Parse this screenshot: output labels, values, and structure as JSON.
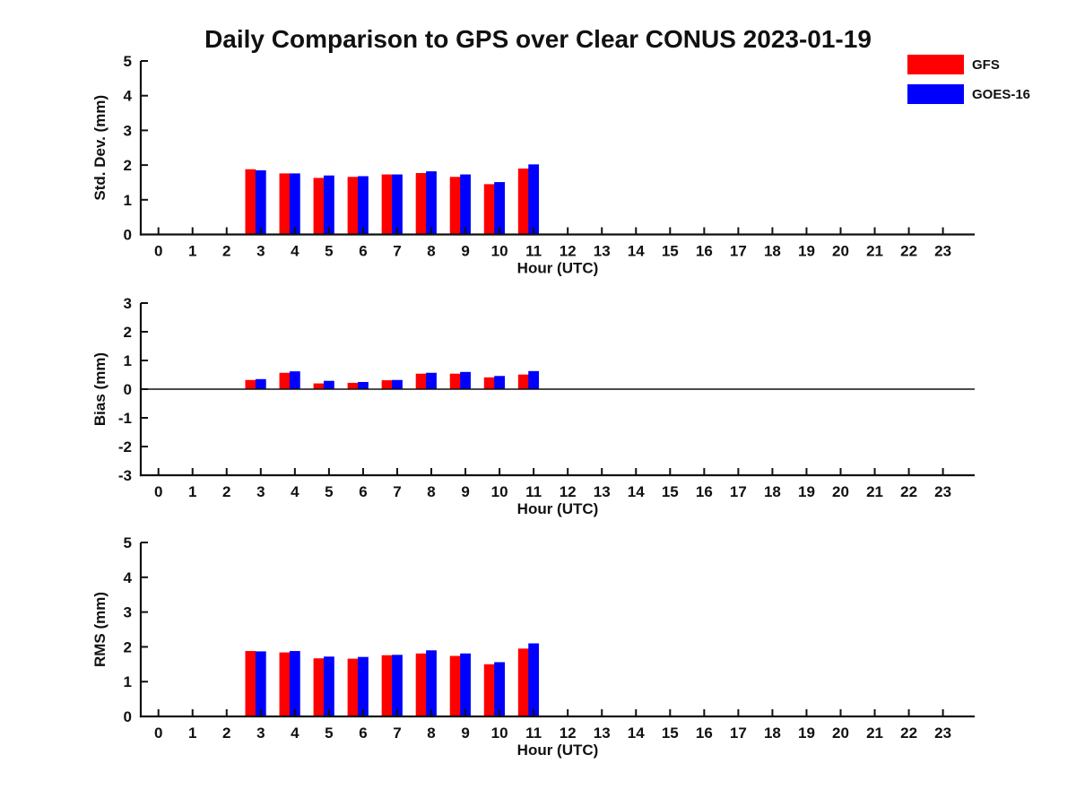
{
  "title": "Daily Comparison to GPS over Clear CONUS 2023-01-19",
  "legend": {
    "position": "top-right",
    "items": [
      {
        "label": "GFS",
        "color": "#ff0000"
      },
      {
        "label": "GOES-16",
        "color": "#0000ff"
      }
    ]
  },
  "chart_data": [
    {
      "type": "bar",
      "name": "std-dev",
      "title": "",
      "xlabel": "Hour (UTC)",
      "ylabel": "Std. Dev. (mm)",
      "ylim": [
        0,
        5
      ],
      "yticks": [
        0,
        1,
        2,
        3,
        4,
        5
      ],
      "grid": false,
      "zero_line": false,
      "categories": [
        "0",
        "1",
        "2",
        "3",
        "4",
        "5",
        "6",
        "7",
        "8",
        "9",
        "10",
        "11",
        "12",
        "13",
        "14",
        "15",
        "16",
        "17",
        "18",
        "19",
        "20",
        "21",
        "22",
        "23"
      ],
      "hours": [
        3,
        4,
        5,
        6,
        7,
        8,
        9,
        10,
        11
      ],
      "series": [
        {
          "name": "GFS",
          "color": "#ff0000",
          "values": [
            1.88,
            1.76,
            1.63,
            1.66,
            1.73,
            1.77,
            1.66,
            1.45,
            1.9
          ]
        },
        {
          "name": "GOES-16",
          "color": "#0000ff",
          "values": [
            1.85,
            1.76,
            1.7,
            1.68,
            1.73,
            1.82,
            1.73,
            1.51,
            2.02
          ]
        }
      ]
    },
    {
      "type": "bar",
      "name": "bias",
      "title": "",
      "xlabel": "Hour (UTC)",
      "ylabel": "Bias (mm)",
      "ylim": [
        -3,
        3
      ],
      "yticks": [
        -3,
        -2,
        -1,
        0,
        1,
        2,
        3
      ],
      "grid": false,
      "zero_line": true,
      "categories": [
        "0",
        "1",
        "2",
        "3",
        "4",
        "5",
        "6",
        "7",
        "8",
        "9",
        "10",
        "11",
        "12",
        "13",
        "14",
        "15",
        "16",
        "17",
        "18",
        "19",
        "20",
        "21",
        "22",
        "23"
      ],
      "hours": [
        3,
        4,
        5,
        6,
        7,
        8,
        9,
        10,
        11
      ],
      "series": [
        {
          "name": "GFS",
          "color": "#ff0000",
          "values": [
            0.32,
            0.57,
            0.2,
            0.22,
            0.31,
            0.54,
            0.54,
            0.41,
            0.51
          ]
        },
        {
          "name": "GOES-16",
          "color": "#0000ff",
          "values": [
            0.35,
            0.62,
            0.29,
            0.25,
            0.32,
            0.57,
            0.6,
            0.46,
            0.63
          ]
        }
      ]
    },
    {
      "type": "bar",
      "name": "rms",
      "title": "",
      "xlabel": "Hour (UTC)",
      "ylabel": "RMS (mm)",
      "ylim": [
        0,
        5
      ],
      "yticks": [
        0,
        1,
        2,
        3,
        4,
        5
      ],
      "grid": false,
      "zero_line": false,
      "categories": [
        "0",
        "1",
        "2",
        "3",
        "4",
        "5",
        "6",
        "7",
        "8",
        "9",
        "10",
        "11",
        "12",
        "13",
        "14",
        "15",
        "16",
        "17",
        "18",
        "19",
        "20",
        "21",
        "22",
        "23"
      ],
      "hours": [
        3,
        4,
        5,
        6,
        7,
        8,
        9,
        10,
        11
      ],
      "series": [
        {
          "name": "GFS",
          "color": "#ff0000",
          "values": [
            1.88,
            1.84,
            1.67,
            1.66,
            1.76,
            1.81,
            1.74,
            1.5,
            1.95
          ]
        },
        {
          "name": "GOES-16",
          "color": "#0000ff",
          "values": [
            1.87,
            1.88,
            1.72,
            1.71,
            1.77,
            1.9,
            1.81,
            1.56,
            2.1
          ]
        }
      ]
    }
  ]
}
